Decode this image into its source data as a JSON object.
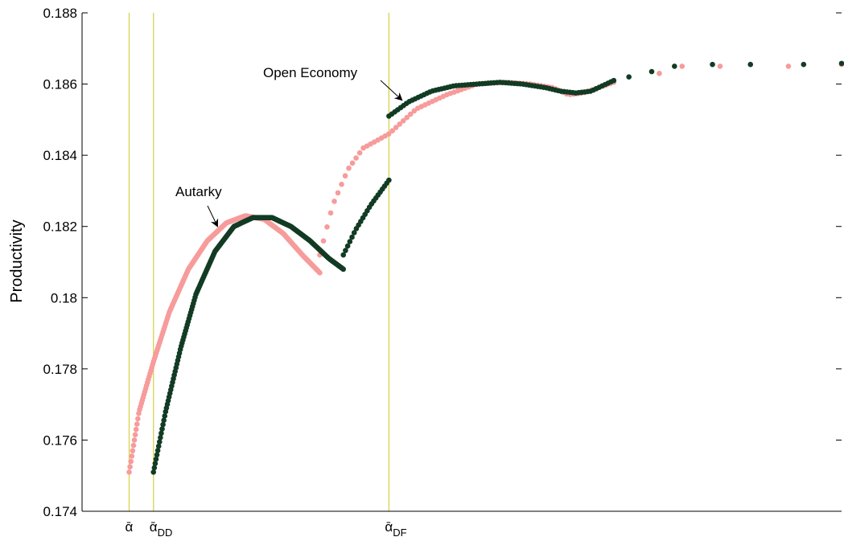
{
  "chart_data": {
    "type": "scatter",
    "title": "",
    "xlabel": "",
    "ylabel": "Productivity",
    "ylim": [
      0.174,
      0.188
    ],
    "yticks": [
      "0.174",
      "0.176",
      "0.178",
      "0.18",
      "0.182",
      "0.184",
      "0.186",
      "0.188"
    ],
    "xlim": [
      0,
      1
    ],
    "colors": {
      "autarky": "#f79b9b",
      "open": "#123b24",
      "vline": "#d9d24a"
    },
    "vlines": [
      {
        "name": "alpha-bar",
        "x": 0.062,
        "label": "ᾱ",
        "sub": ""
      },
      {
        "name": "alpha-dd",
        "x": 0.094,
        "label": "ᾱ",
        "sub": "DD"
      },
      {
        "name": "alpha-df",
        "x": 0.404,
        "label": "ᾱ",
        "sub": "DF"
      }
    ],
    "annotations": [
      {
        "text": "Autarky",
        "series": "autarky",
        "x": 0.175,
        "y": 0.1817
      },
      {
        "text": "Open Economy",
        "series": "open",
        "x": 0.403,
        "y": 0.1858
      }
    ],
    "series": [
      {
        "name": "autarky",
        "segments": [
          {
            "x_start": 0.062,
            "x_end": 0.313,
            "n": 220,
            "points": [
              [
                0.062,
                0.1751
              ],
              [
                0.075,
                0.1768
              ],
              [
                0.094,
                0.1782
              ],
              [
                0.115,
                0.1796
              ],
              [
                0.14,
                0.1808
              ],
              [
                0.165,
                0.1816
              ],
              [
                0.19,
                0.1821
              ],
              [
                0.215,
                0.1823
              ],
              [
                0.24,
                0.1822
              ],
              [
                0.265,
                0.1818
              ],
              [
                0.29,
                0.1812
              ],
              [
                0.313,
                0.1807
              ]
            ]
          },
          {
            "x_start": 0.313,
            "x_end": 0.7,
            "n": 82,
            "points": [
              [
                0.313,
                0.1812
              ],
              [
                0.33,
                0.1826
              ],
              [
                0.35,
                0.1836
              ],
              [
                0.37,
                0.1842
              ],
              [
                0.404,
                0.1846
              ],
              [
                0.44,
                0.1853
              ],
              [
                0.48,
                0.1857
              ],
              [
                0.52,
                0.186
              ],
              [
                0.56,
                0.18605
              ],
              [
                0.59,
                0.186
              ],
              [
                0.62,
                0.1859
              ],
              [
                0.64,
                0.1857
              ],
              [
                0.66,
                0.18575
              ],
              [
                0.7,
                0.18605
              ]
            ]
          },
          {
            "x_start": 0.74,
            "x_end": 1.0,
            "n": 0,
            "points": [],
            "markers": [
              [
                0.76,
                0.1863
              ],
              [
                0.79,
                0.1865
              ],
              [
                0.84,
                0.1865
              ],
              [
                0.93,
                0.1865
              ],
              [
                1.0,
                0.18655
              ]
            ]
          }
        ]
      },
      {
        "name": "open",
        "segments": [
          {
            "x_start": 0.094,
            "x_end": 0.344,
            "n": 220,
            "points": [
              [
                0.094,
                0.1751
              ],
              [
                0.11,
                0.1768
              ],
              [
                0.13,
                0.1786
              ],
              [
                0.15,
                0.1801
              ],
              [
                0.175,
                0.1813
              ],
              [
                0.2,
                0.182
              ],
              [
                0.225,
                0.18225
              ],
              [
                0.25,
                0.18225
              ],
              [
                0.275,
                0.182
              ],
              [
                0.3,
                0.1816
              ],
              [
                0.325,
                0.1811
              ],
              [
                0.344,
                0.1808
              ]
            ]
          },
          {
            "x_start": 0.344,
            "x_end": 0.404,
            "n": 22,
            "points": [
              [
                0.344,
                0.1812
              ],
              [
                0.36,
                0.1819
              ],
              [
                0.38,
                0.1826
              ],
              [
                0.404,
                0.1833
              ]
            ]
          },
          {
            "x_start": 0.404,
            "x_end": 0.7,
            "n": 78,
            "points": [
              [
                0.404,
                0.1851
              ],
              [
                0.43,
                0.1855
              ],
              [
                0.46,
                0.1858
              ],
              [
                0.49,
                0.18595
              ],
              [
                0.52,
                0.186
              ],
              [
                0.55,
                0.18605
              ],
              [
                0.58,
                0.186
              ],
              [
                0.61,
                0.1859
              ],
              [
                0.63,
                0.1858
              ],
              [
                0.65,
                0.18575
              ],
              [
                0.67,
                0.1858
              ],
              [
                0.7,
                0.1861
              ]
            ]
          },
          {
            "x_start": 0.72,
            "x_end": 1.0,
            "n": 0,
            "points": [],
            "markers": [
              [
                0.72,
                0.1862
              ],
              [
                0.75,
                0.18635
              ],
              [
                0.78,
                0.1865
              ],
              [
                0.83,
                0.18655
              ],
              [
                0.88,
                0.18655
              ],
              [
                0.95,
                0.18655
              ],
              [
                1.0,
                0.18658
              ]
            ]
          }
        ]
      }
    ]
  }
}
